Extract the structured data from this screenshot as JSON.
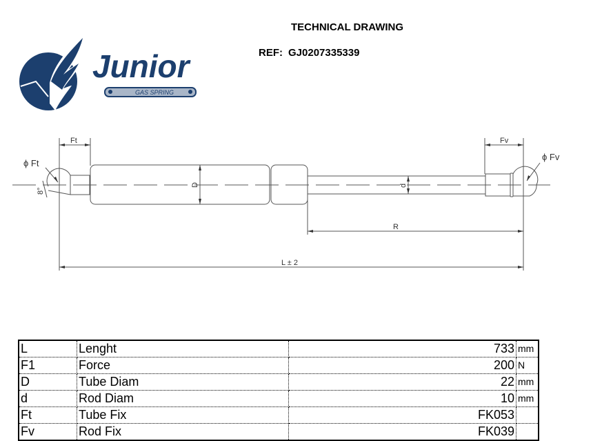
{
  "header": {
    "title": "TECHNICAL DRAWING",
    "ref_label": "REF:",
    "ref_value": "GJ0207335339"
  },
  "logo": {
    "brand": "Junior",
    "tagline": "GAS SPRING",
    "color": "#1c3f6e"
  },
  "drawing": {
    "labels": {
      "ft": "Ft",
      "fv": "Fv",
      "phi_ft": "ϕ Ft",
      "phi_fv": "ϕ Fv",
      "tube_diam": "D",
      "rod_diam": "d",
      "stroke": "R",
      "length": "L ± 2",
      "angle": "8°"
    }
  },
  "specs": {
    "rows": [
      {
        "code": "L",
        "name": "Lenght",
        "value": "733",
        "unit": "mm"
      },
      {
        "code": "F1",
        "name": "Force",
        "value": "200",
        "unit": "N"
      },
      {
        "code": "D",
        "name": "Tube Diam",
        "value": "22",
        "unit": "mm"
      },
      {
        "code": "d",
        "name": "Rod Diam",
        "value": "10",
        "unit": "mm"
      },
      {
        "code": "Ft",
        "name": "Tube Fix",
        "value": "FK053",
        "unit": ""
      },
      {
        "code": "Fv",
        "name": "Rod Fix",
        "value": "FK039",
        "unit": ""
      }
    ]
  }
}
